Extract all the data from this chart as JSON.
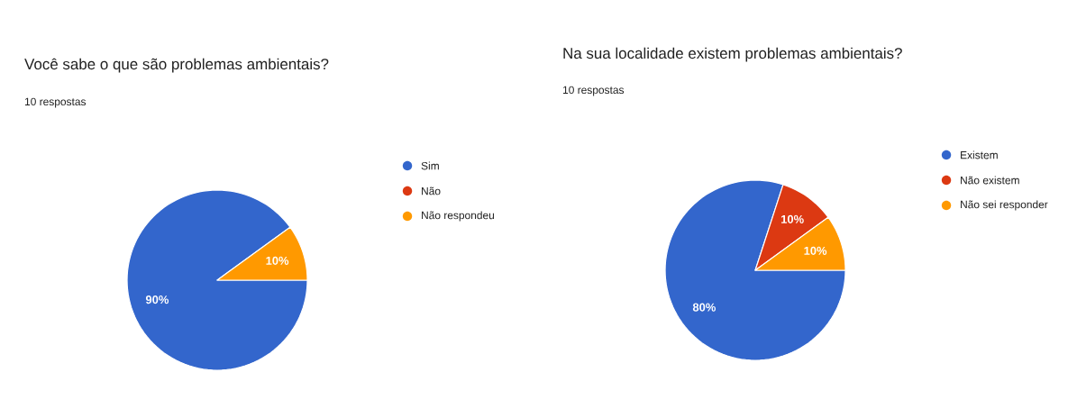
{
  "chart_data": [
    {
      "type": "pie",
      "title": "Você sabe o que são problemas ambientais?",
      "subtitle": "10 respostas",
      "categories": [
        "Sim",
        "Não",
        "Não respondeu"
      ],
      "values": [
        90,
        0,
        10
      ],
      "colors": [
        "#3366cc",
        "#dc3912",
        "#ff9900"
      ],
      "value_labels": [
        "90%",
        null,
        "10%"
      ],
      "legend": "right"
    },
    {
      "type": "pie",
      "title": "Na sua localidade existem problemas ambientais?",
      "subtitle": "10 respostas",
      "categories": [
        "Existem",
        "Não existem",
        "Não sei responder"
      ],
      "values": [
        80,
        10,
        10
      ],
      "colors": [
        "#3366cc",
        "#dc3912",
        "#ff9900"
      ],
      "value_labels": [
        "80%",
        "10%",
        "10%"
      ],
      "legend": "right"
    }
  ]
}
